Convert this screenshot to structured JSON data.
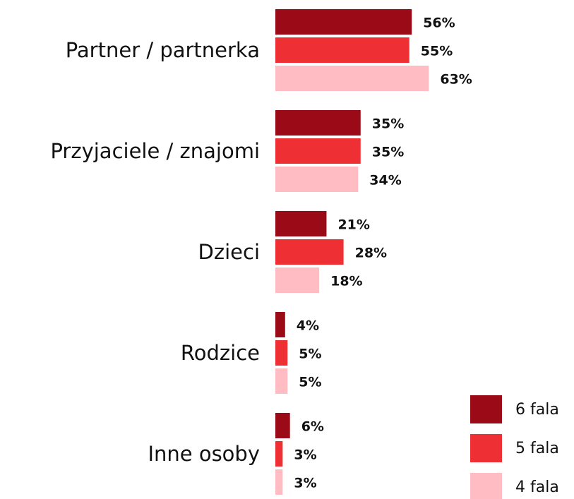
{
  "chart_data": {
    "type": "bar",
    "orientation": "horizontal",
    "categories": [
      "Partner / partnerka",
      "Przyjaciele / znajomi",
      "Dzieci",
      "Rodzice",
      "Inne osoby"
    ],
    "series": [
      {
        "name": "6 fala",
        "color": "#9b0a17",
        "values": [
          56,
          35,
          21,
          4,
          6
        ],
        "value_labels": [
          "56%",
          "35%",
          "21%",
          "4%",
          "6%"
        ]
      },
      {
        "name": "5 fala",
        "color": "#ee2f33",
        "values": [
          55,
          35,
          28,
          5,
          3
        ],
        "value_labels": [
          "55%",
          "35%",
          "28%",
          "5%",
          "3%"
        ]
      },
      {
        "name": "4 fala",
        "color": "#ffbcc2",
        "values": [
          63,
          34,
          18,
          5,
          3
        ],
        "value_labels": [
          "63%",
          "34%",
          "18%",
          "5%",
          "3%"
        ]
      }
    ],
    "legend": "bottom-right"
  }
}
